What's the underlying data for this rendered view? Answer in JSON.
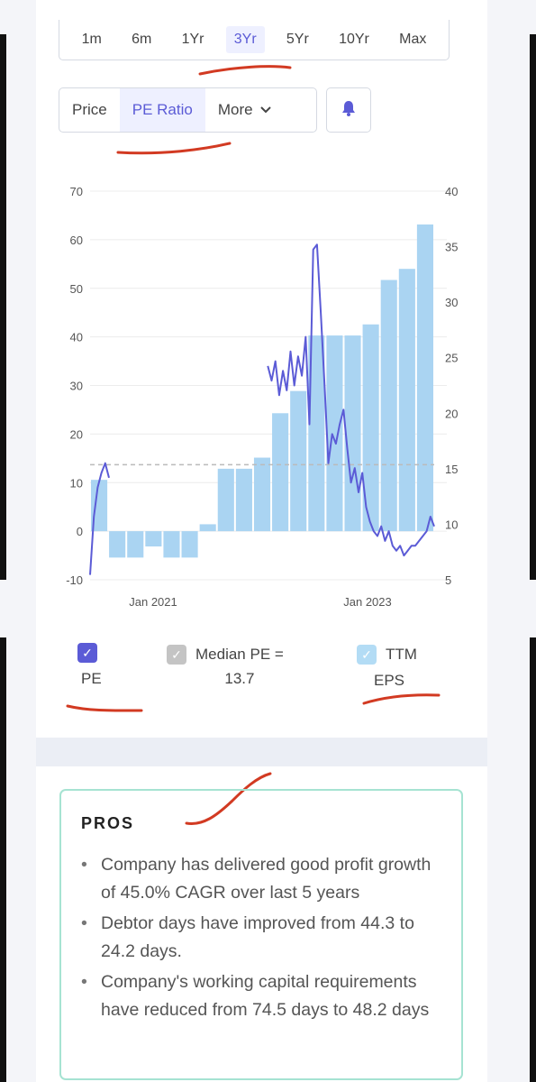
{
  "range": {
    "options": [
      "1m",
      "6m",
      "1Yr",
      "3Yr",
      "5Yr",
      "10Yr",
      "Max"
    ],
    "active": "3Yr"
  },
  "tabs": {
    "price": "Price",
    "pe": "PE Ratio",
    "more": "More",
    "active": "PE Ratio"
  },
  "icons": {
    "alert": "bell-icon",
    "checkbox": "check-icon",
    "dropdown": "chevron-down-icon"
  },
  "colors": {
    "accent": "#5b5bd6",
    "pe_line": "#5b5bd6",
    "eps_bar": "#aad4f2",
    "median_line": "#bbbbbb",
    "pros_border": "#a6e3d2"
  },
  "chart_data": {
    "type": "bar",
    "combo": "bars (TTM EPS, right axis) + line (PE, left axis) + dashed median line",
    "left_axis": {
      "ticks": [
        70,
        60,
        50,
        40,
        30,
        20,
        10,
        0,
        -10
      ],
      "range": [
        -10,
        70
      ]
    },
    "right_axis": {
      "ticks": [
        40,
        35,
        30,
        25,
        20,
        15,
        10,
        5
      ],
      "range": [
        5,
        40
      ]
    },
    "x_labels": [
      "Jan 2021",
      "Jan 2023"
    ],
    "median_pe": 13.7,
    "eps_bars": {
      "name": "TTM EPS",
      "values": [
        14,
        7,
        7,
        8,
        7,
        7,
        10,
        15,
        15,
        16,
        20,
        22,
        27,
        27,
        27,
        28,
        32,
        33,
        37
      ]
    },
    "pe_line": {
      "name": "PE",
      "segments": [
        [
          [
            0,
            -9
          ],
          [
            1,
            3
          ],
          [
            2,
            9
          ],
          [
            3,
            12
          ],
          [
            4,
            14
          ],
          [
            5,
            11
          ]
        ],
        [
          [
            47,
            34
          ],
          [
            48,
            31
          ],
          [
            49,
            35
          ],
          [
            50,
            28
          ],
          [
            51,
            33
          ],
          [
            52,
            29
          ],
          [
            53,
            37
          ],
          [
            54,
            30
          ],
          [
            55,
            36
          ],
          [
            56,
            32
          ],
          [
            57,
            40
          ],
          [
            58,
            22
          ],
          [
            59,
            58
          ],
          [
            60,
            59
          ],
          [
            61,
            45
          ],
          [
            62,
            30
          ],
          [
            63,
            14
          ],
          [
            64,
            20
          ],
          [
            65,
            18
          ],
          [
            66,
            22
          ],
          [
            67,
            25
          ],
          [
            68,
            17
          ],
          [
            69,
            10
          ],
          [
            70,
            13
          ],
          [
            71,
            8
          ],
          [
            72,
            12
          ],
          [
            73,
            5
          ],
          [
            74,
            2
          ],
          [
            75,
            0
          ],
          [
            76,
            -1
          ],
          [
            77,
            1
          ],
          [
            78,
            -2
          ],
          [
            79,
            0
          ],
          [
            80,
            -3
          ],
          [
            81,
            -4
          ],
          [
            82,
            -3
          ],
          [
            83,
            -5
          ],
          [
            84,
            -4
          ],
          [
            85,
            -3
          ],
          [
            86,
            -3
          ],
          [
            87,
            -2
          ],
          [
            88,
            -1
          ],
          [
            89,
            0
          ],
          [
            90,
            3
          ],
          [
            91,
            1
          ]
        ]
      ],
      "x_range": [
        0,
        91
      ]
    }
  },
  "legend": {
    "pe": {
      "label": "PE",
      "checked": true
    },
    "median": {
      "label": "Median PE =",
      "value": "13.7",
      "checked": true
    },
    "eps": {
      "label": "TTM",
      "label2": "EPS",
      "checked": true
    }
  },
  "pros": {
    "title": "PROS",
    "items": [
      "Company has delivered good profit growth of 45.0% CAGR over last 5 years",
      "Debtor days have improved from 44.3 to 24.2 days.",
      "Company's working capital requirements have reduced from 74.5 days to 48.2 days"
    ]
  }
}
